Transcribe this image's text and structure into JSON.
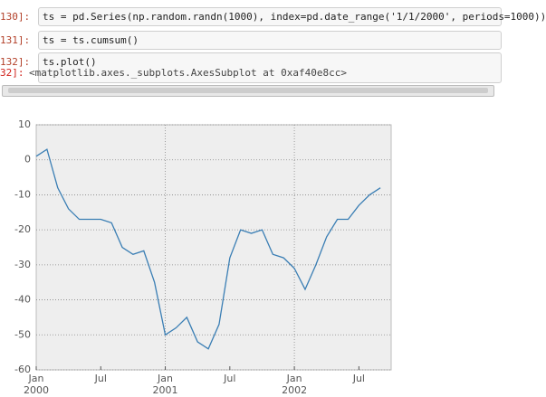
{
  "cells": [
    {
      "prompt": "130]:",
      "code": "ts = pd.Series(np.random.randn(1000), index=pd.date_range('1/1/2000', periods=1000))"
    },
    {
      "prompt": "131]:",
      "code": "ts = ts.cumsum()"
    },
    {
      "prompt": "132]:",
      "code": "ts.plot()"
    }
  ],
  "output": {
    "prompt": "32]:",
    "text": "<matplotlib.axes._subplots.AxesSubplot at 0xaf40e8cc>"
  },
  "chart_data": {
    "type": "line",
    "x": [
      "2000-01",
      "2000-02",
      "2000-03",
      "2000-04",
      "2000-05",
      "2000-06",
      "2000-07",
      "2000-08",
      "2000-09",
      "2000-10",
      "2000-11",
      "2000-12",
      "2001-01",
      "2001-02",
      "2001-03",
      "2001-04",
      "2001-05",
      "2001-06",
      "2001-07",
      "2001-08",
      "2001-09",
      "2001-10",
      "2001-11",
      "2001-12",
      "2002-01",
      "2002-02",
      "2002-03",
      "2002-04",
      "2002-05",
      "2002-06",
      "2002-07",
      "2002-08",
      "2002-09"
    ],
    "series": [
      {
        "color": "#3a7eb4",
        "values": [
          1,
          3,
          -8,
          -14,
          -17,
          -17,
          -17,
          -18,
          -25,
          -27,
          -26,
          -35,
          -50,
          -48,
          -45,
          -52,
          -54,
          -47,
          -28,
          -20,
          -21,
          -20,
          -27,
          -28,
          -31,
          -37,
          -30,
          -22,
          -17,
          -17,
          -13,
          -10,
          -8
        ]
      }
    ],
    "xlim": [
      "2000-01",
      "2002-10"
    ],
    "xticks": [
      {
        "value": "2000-01",
        "label": "Jan\n2000"
      },
      {
        "value": "2000-07",
        "label": "Jul"
      },
      {
        "value": "2001-01",
        "label": "Jan\n2001"
      },
      {
        "value": "2001-07",
        "label": "Jul"
      },
      {
        "value": "2002-01",
        "label": "Jan\n2002"
      },
      {
        "value": "2002-07",
        "label": "Jul"
      }
    ],
    "xgrid": [
      "2001-01",
      "2002-01"
    ],
    "ylim": [
      -60,
      10
    ],
    "yticks": [
      10,
      0,
      -10,
      -20,
      -30,
      -40,
      -50,
      -60
    ],
    "grid": true
  }
}
